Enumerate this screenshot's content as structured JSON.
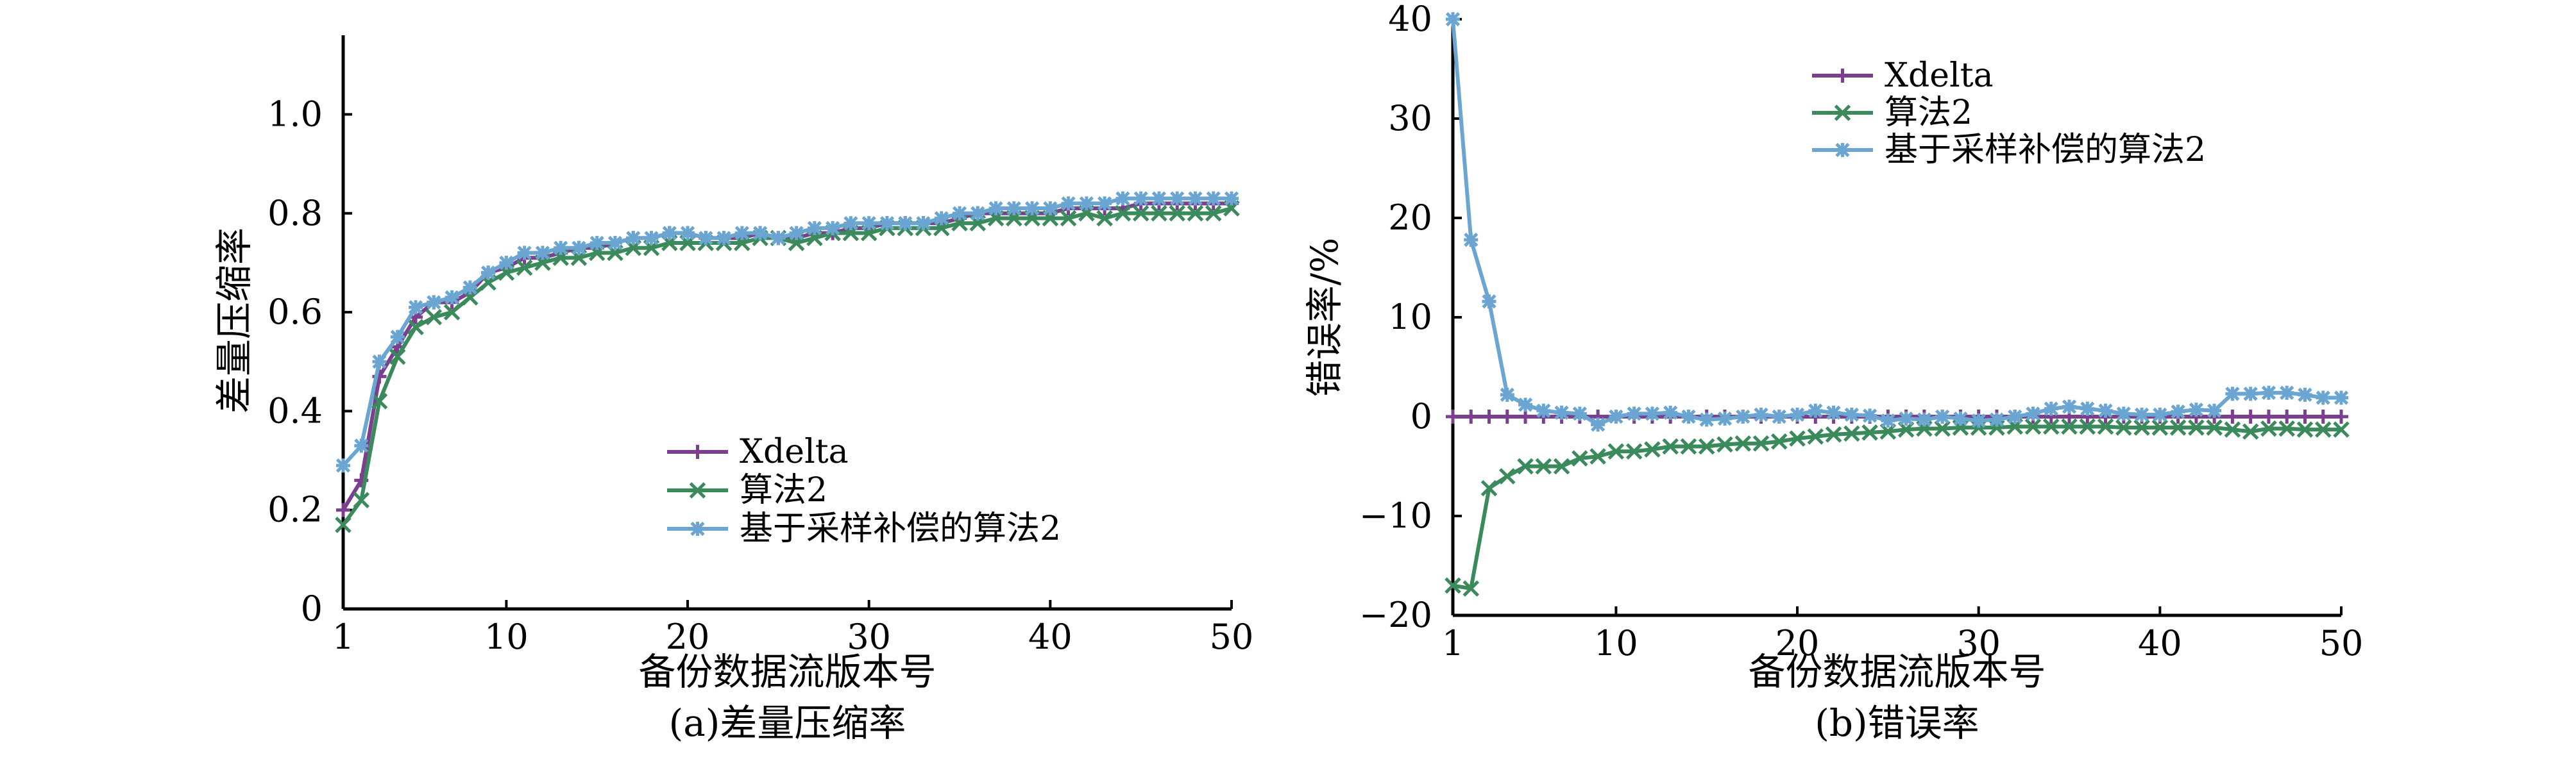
{
  "chart_data": [
    {
      "type": "line",
      "caption": "(a)差量压缩率",
      "xlabel": "备份数据流版本号",
      "ylabel": "差量压缩率",
      "xlim": [
        1,
        50
      ],
      "ylim": [
        0,
        1.16
      ],
      "xticks": [
        "1",
        "10",
        "20",
        "30",
        "40",
        "50"
      ],
      "yticks": [
        "0",
        "0.2",
        "0.4",
        "0.6",
        "0.8",
        "1.0"
      ],
      "grid": false,
      "legend_position": "center",
      "x": [
        1,
        2,
        3,
        4,
        5,
        6,
        7,
        8,
        9,
        10,
        11,
        12,
        13,
        14,
        15,
        16,
        17,
        18,
        19,
        20,
        21,
        22,
        23,
        24,
        25,
        26,
        27,
        28,
        29,
        30,
        31,
        32,
        33,
        34,
        35,
        36,
        37,
        38,
        39,
        40,
        41,
        42,
        43,
        44,
        45,
        46,
        47,
        48,
        49,
        50
      ],
      "series": [
        {
          "name": "Xdelta",
          "color": "#7b3f8f",
          "marker": "plus",
          "values": [
            0.2,
            0.26,
            0.47,
            0.53,
            0.59,
            0.62,
            0.62,
            0.64,
            0.68,
            0.69,
            0.71,
            0.71,
            0.72,
            0.73,
            0.73,
            0.74,
            0.75,
            0.75,
            0.76,
            0.76,
            0.75,
            0.75,
            0.75,
            0.76,
            0.75,
            0.75,
            0.76,
            0.76,
            0.77,
            0.77,
            0.78,
            0.78,
            0.78,
            0.78,
            0.79,
            0.8,
            0.8,
            0.8,
            0.8,
            0.8,
            0.81,
            0.81,
            0.81,
            0.81,
            0.82,
            0.82,
            0.82,
            0.82,
            0.82,
            0.82
          ]
        },
        {
          "name": "算法2",
          "color": "#3a8a5c",
          "marker": "x",
          "values": [
            0.17,
            0.22,
            0.42,
            0.51,
            0.57,
            0.59,
            0.6,
            0.63,
            0.66,
            0.68,
            0.69,
            0.7,
            0.71,
            0.71,
            0.72,
            0.72,
            0.73,
            0.73,
            0.74,
            0.74,
            0.74,
            0.74,
            0.74,
            0.75,
            0.75,
            0.74,
            0.75,
            0.76,
            0.76,
            0.76,
            0.77,
            0.77,
            0.77,
            0.77,
            0.78,
            0.78,
            0.79,
            0.79,
            0.79,
            0.79,
            0.79,
            0.8,
            0.79,
            0.8,
            0.8,
            0.8,
            0.8,
            0.8,
            0.8,
            0.81
          ]
        },
        {
          "name": "基于采样补偿的算法2",
          "color": "#6aa6d1",
          "marker": "asterisk",
          "values": [
            0.29,
            0.33,
            0.5,
            0.55,
            0.61,
            0.62,
            0.63,
            0.65,
            0.68,
            0.7,
            0.72,
            0.72,
            0.73,
            0.73,
            0.74,
            0.74,
            0.75,
            0.75,
            0.76,
            0.76,
            0.75,
            0.75,
            0.76,
            0.76,
            0.75,
            0.76,
            0.77,
            0.77,
            0.78,
            0.78,
            0.78,
            0.78,
            0.78,
            0.79,
            0.8,
            0.8,
            0.81,
            0.81,
            0.81,
            0.81,
            0.82,
            0.82,
            0.82,
            0.83,
            0.83,
            0.83,
            0.83,
            0.83,
            0.83,
            0.83
          ]
        }
      ]
    },
    {
      "type": "line",
      "caption": "(b)错误率",
      "xlabel": "备份数据流版本号",
      "ylabel": "错误率/%",
      "xlim": [
        1,
        50
      ],
      "ylim": [
        -20,
        40
      ],
      "xticks": [
        "1",
        "10",
        "20",
        "30",
        "40",
        "50"
      ],
      "yticks": [
        "−20",
        "−10",
        "0",
        "10",
        "20",
        "30",
        "40"
      ],
      "grid": false,
      "legend_position": "top-center",
      "x": [
        1,
        2,
        3,
        4,
        5,
        6,
        7,
        8,
        9,
        10,
        11,
        12,
        13,
        14,
        15,
        16,
        17,
        18,
        19,
        20,
        21,
        22,
        23,
        24,
        25,
        26,
        27,
        28,
        29,
        30,
        31,
        32,
        33,
        34,
        35,
        36,
        37,
        38,
        39,
        40,
        41,
        42,
        43,
        44,
        45,
        46,
        47,
        48,
        49,
        50
      ],
      "series": [
        {
          "name": "Xdelta",
          "color": "#7b3f8f",
          "marker": "plus",
          "values": [
            0,
            0,
            0,
            0,
            0,
            0,
            0,
            0,
            0,
            0,
            0,
            0,
            0,
            0,
            0,
            0,
            0,
            0,
            0,
            0,
            0,
            0,
            0,
            0,
            0,
            0,
            0,
            0,
            0,
            0,
            0,
            0,
            0,
            0,
            0,
            0,
            0,
            0,
            0,
            0,
            0,
            0,
            0,
            0,
            0,
            0,
            0,
            0,
            0,
            0
          ]
        },
        {
          "name": "算法2",
          "color": "#3a8a5c",
          "marker": "x",
          "values": [
            -17,
            -17.3,
            -7.2,
            -6,
            -5,
            -5,
            -5,
            -4.2,
            -4,
            -3.5,
            -3.5,
            -3.3,
            -3,
            -3,
            -3,
            -2.8,
            -2.7,
            -2.7,
            -2.5,
            -2.2,
            -2,
            -1.8,
            -1.7,
            -1.6,
            -1.5,
            -1.3,
            -1.2,
            -1.2,
            -1.1,
            -1.1,
            -1.1,
            -1,
            -1,
            -1,
            -1,
            -1,
            -1,
            -1.1,
            -1.1,
            -1.1,
            -1.1,
            -1.1,
            -1.1,
            -1.3,
            -1.5,
            -1.2,
            -1.2,
            -1.3,
            -1.3,
            -1.3
          ]
        },
        {
          "name": "基于采样补偿的算法2",
          "color": "#6aa6d1",
          "marker": "asterisk",
          "values": [
            40,
            17.8,
            11.6,
            2.2,
            1.2,
            0.6,
            0.4,
            0.3,
            -0.8,
            0,
            0.3,
            0.3,
            0.4,
            0,
            -0.3,
            -0.2,
            0,
            0.2,
            0,
            0.2,
            0.6,
            0.4,
            0.2,
            0.1,
            -0.4,
            -0.2,
            -0.3,
            0,
            -0.2,
            -0.4,
            -0.3,
            0,
            0.3,
            0.8,
            1,
            0.8,
            0.6,
            0.3,
            0.2,
            0.2,
            0.5,
            0.7,
            0.6,
            2.3,
            2.3,
            2.4,
            2.4,
            2.2,
            1.9,
            1.9
          ]
        }
      ]
    }
  ]
}
